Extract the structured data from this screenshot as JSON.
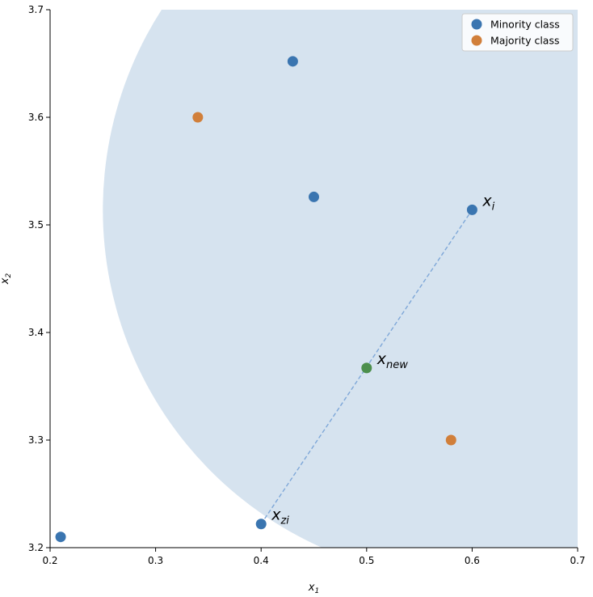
{
  "chart_data": {
    "type": "scatter",
    "title": "",
    "xlabel": "x",
    "xlabel_sub": "1",
    "ylabel": "x",
    "ylabel_sub": "2",
    "xlim": [
      0.2,
      0.7
    ],
    "ylim": [
      3.2,
      3.7
    ],
    "xticks": [
      "0.2",
      "0.3",
      "0.4",
      "0.5",
      "0.6",
      "0.7"
    ],
    "yticks": [
      "3.2",
      "3.3",
      "3.4",
      "3.5",
      "3.6",
      "3.7"
    ],
    "grid": false,
    "legend_position": "top-right",
    "series": [
      {
        "name": "Minority class",
        "color": "#3a75b0",
        "points": [
          [
            0.21,
            3.21
          ],
          [
            0.43,
            3.652
          ],
          [
            0.45,
            3.526
          ],
          [
            0.6,
            3.514
          ],
          [
            0.4,
            3.222
          ]
        ]
      },
      {
        "name": "Majority class",
        "color": "#d17f3a",
        "points": [
          [
            0.34,
            3.6
          ],
          [
            0.58,
            3.3
          ]
        ]
      }
    ],
    "new_point": {
      "x": 0.5,
      "y": 3.367,
      "color": "#4c8f4c"
    },
    "interpolation_line": {
      "from": [
        0.4,
        3.222
      ],
      "to": [
        0.6,
        3.514
      ],
      "style": "dashed",
      "color": "#7ea7d8"
    },
    "neighborhood_circle": {
      "center": [
        0.6,
        3.514
      ],
      "radius": 0.35,
      "fill": "#d6e3ef"
    },
    "annotations": [
      {
        "base": "x",
        "sub": "i",
        "at": [
          0.6,
          3.514
        ]
      },
      {
        "base": "x",
        "sub": "new",
        "at": [
          0.5,
          3.367
        ]
      },
      {
        "base": "x",
        "sub": "zi",
        "at": [
          0.4,
          3.222
        ]
      }
    ]
  }
}
